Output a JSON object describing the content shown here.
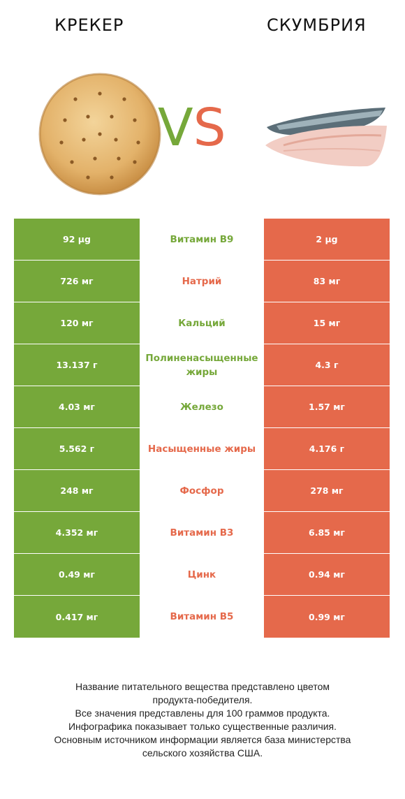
{
  "header": {
    "product_left": "КРЕКЕР",
    "product_right": "СКУМБРИЯ",
    "vs_v": "V",
    "vs_s": "S"
  },
  "colors": {
    "left": "#76a83a",
    "right": "#e5694b"
  },
  "chart_data": {
    "type": "table",
    "columns": [
      "КРЕКЕР",
      "",
      "СКУМБРИЯ"
    ],
    "rows": [
      {
        "nutrient": "Витамин B9",
        "left": "92 µg",
        "right": "2 µg",
        "winner": "left"
      },
      {
        "nutrient": "Натрий",
        "left": "726 мг",
        "right": "83 мг",
        "winner": "right"
      },
      {
        "nutrient": "Кальций",
        "left": "120 мг",
        "right": "15 мг",
        "winner": "left"
      },
      {
        "nutrient": "Полиненасыщенные жиры",
        "left": "13.137 г",
        "right": "4.3 г",
        "winner": "left"
      },
      {
        "nutrient": "Железо",
        "left": "4.03 мг",
        "right": "1.57 мг",
        "winner": "left"
      },
      {
        "nutrient": "Насыщенные жиры",
        "left": "5.562 г",
        "right": "4.176 г",
        "winner": "right"
      },
      {
        "nutrient": "Фосфор",
        "left": "248 мг",
        "right": "278 мг",
        "winner": "right"
      },
      {
        "nutrient": "Витамин B3",
        "left": "4.352 мг",
        "right": "6.85 мг",
        "winner": "right"
      },
      {
        "nutrient": "Цинк",
        "left": "0.49 мг",
        "right": "0.94 мг",
        "winner": "right"
      },
      {
        "nutrient": "Витамин B5",
        "left": "0.417 мг",
        "right": "0.99 мг",
        "winner": "right"
      }
    ]
  },
  "footnote": {
    "line1": "Название питательного вещества представлено цветом",
    "line2": "продукта-победителя.",
    "line3": "Все значения представлены для 100 граммов продукта.",
    "line4": "Инфографика показывает только существенные различия.",
    "line5": "Основным источником информации является база министерства",
    "line6": "сельского хозяйства США."
  }
}
